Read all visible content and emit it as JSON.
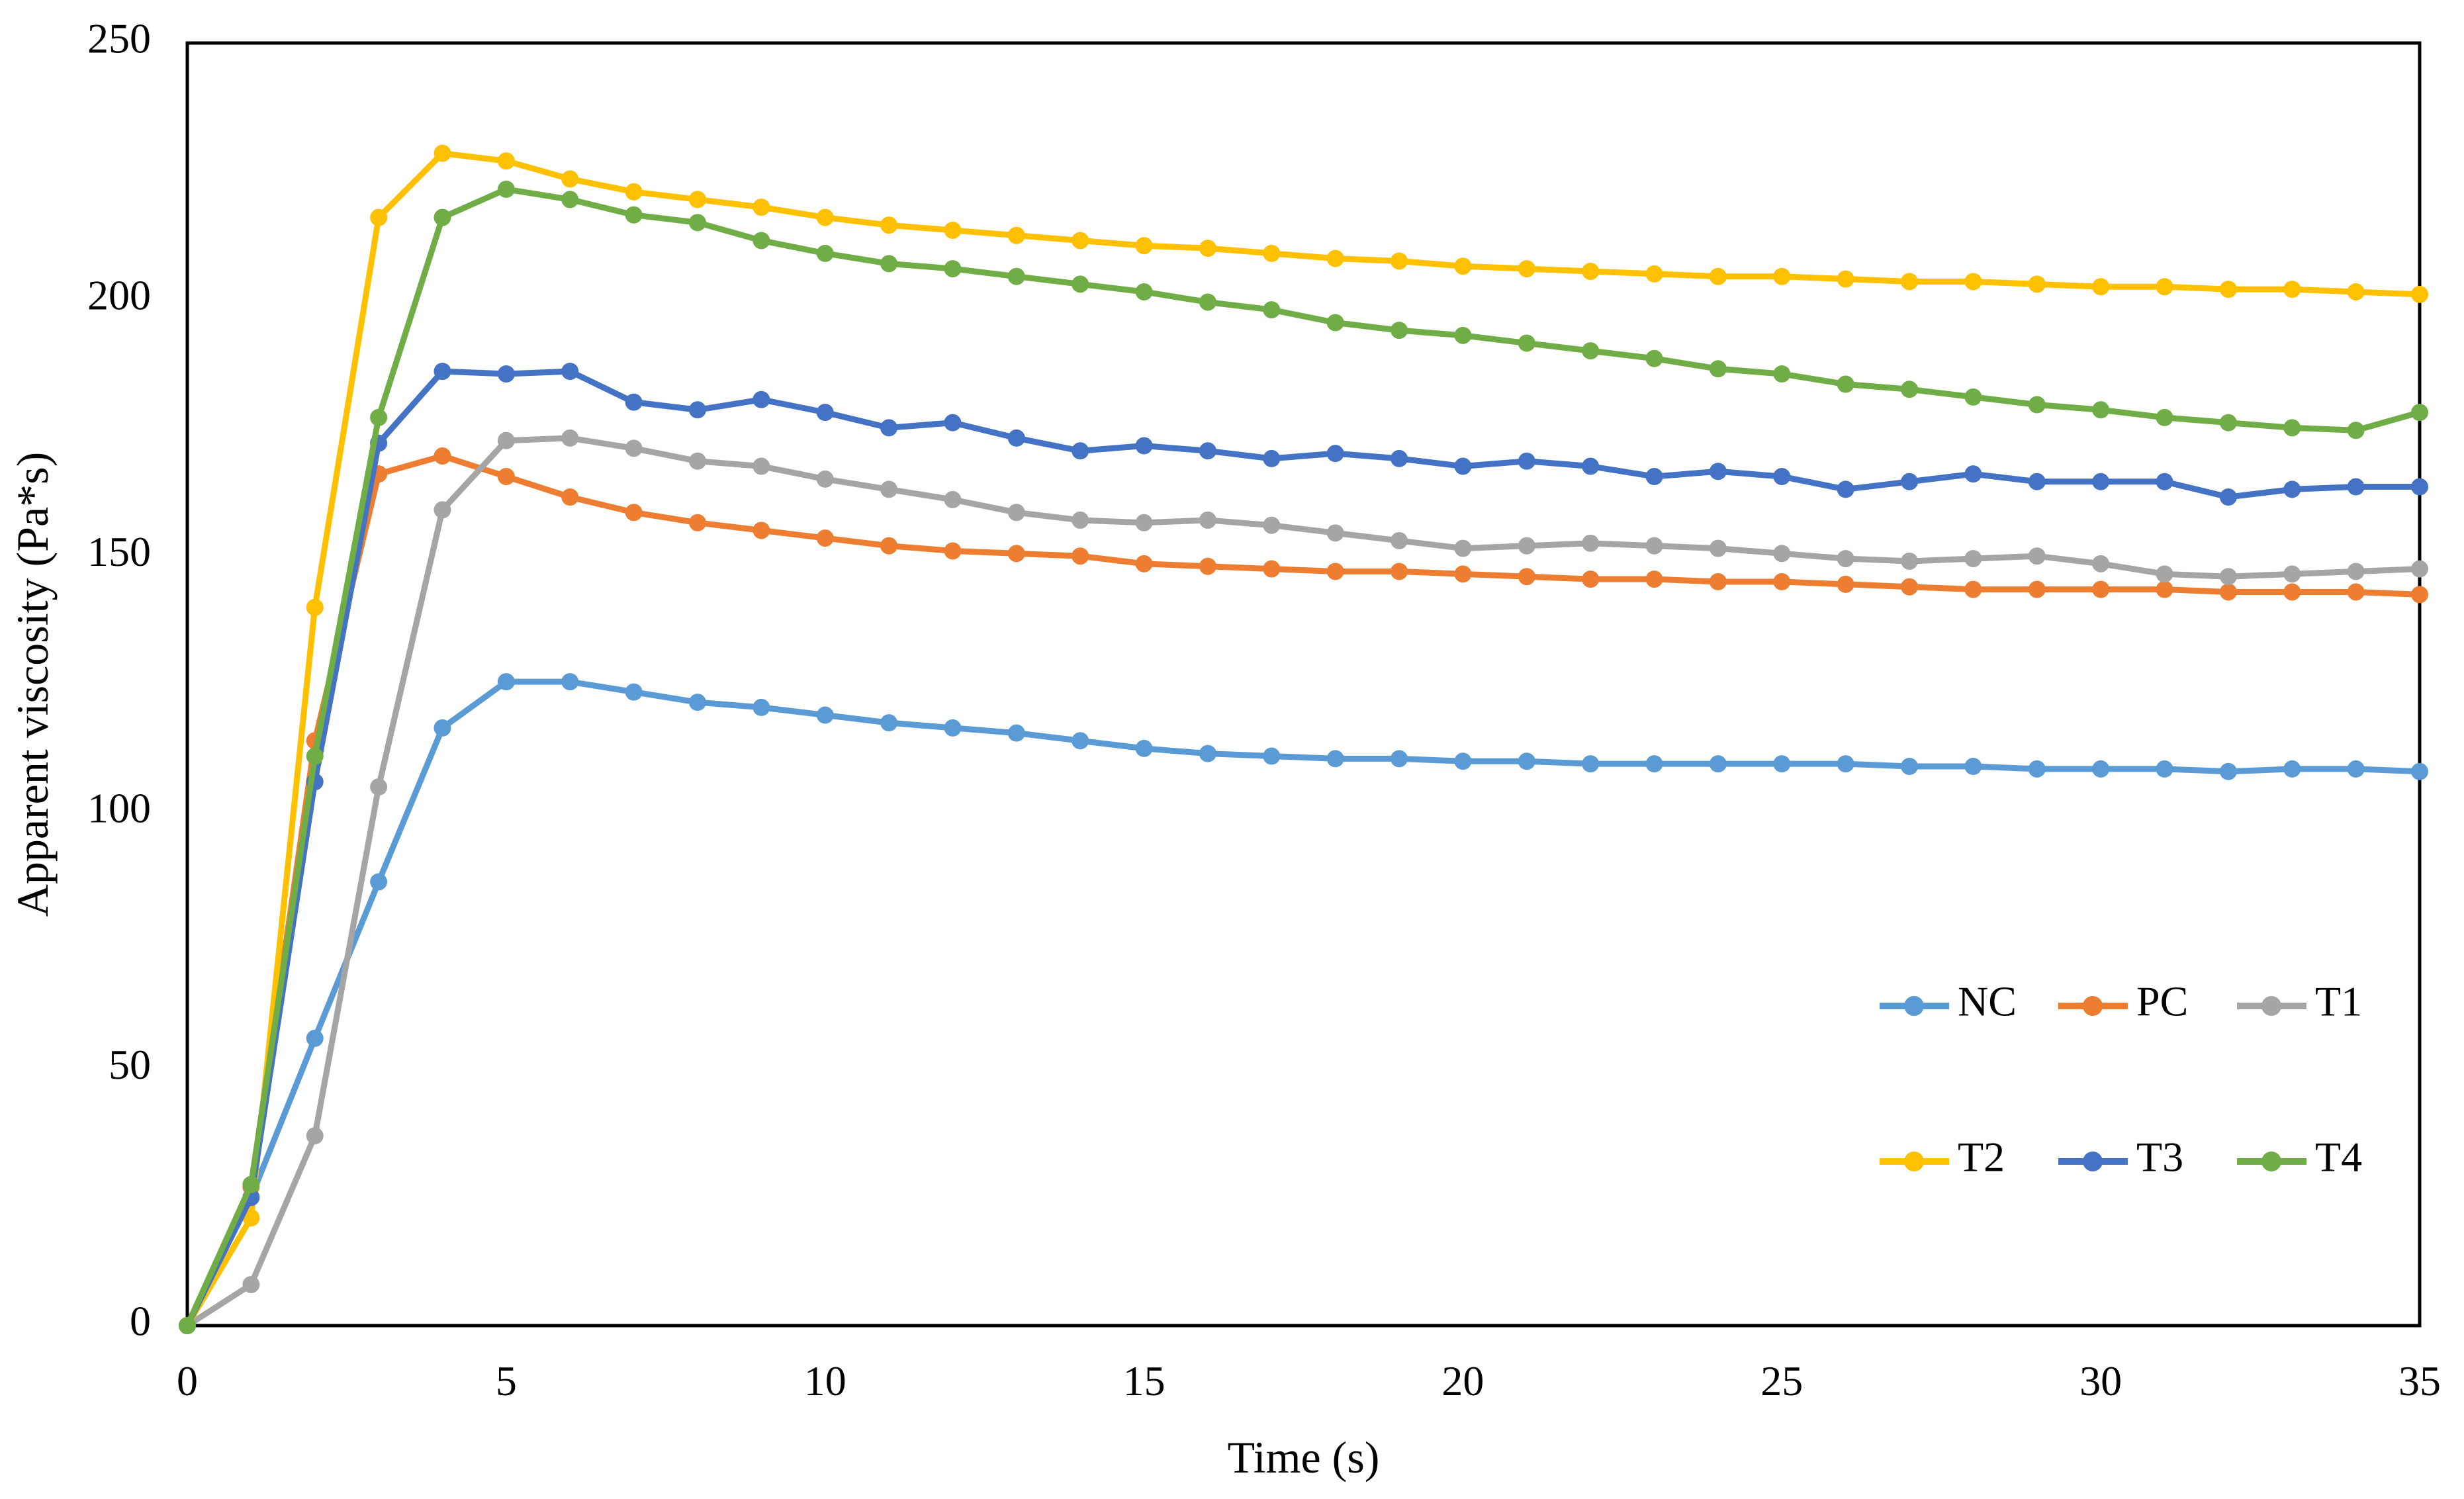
{
  "chart_data": {
    "type": "line",
    "title": "",
    "xlabel": "Time (s)",
    "ylabel": "Apparent viscosity (Pa*s)",
    "xlim": [
      0,
      35
    ],
    "ylim": [
      0,
      250
    ],
    "xticks": [
      0,
      5,
      10,
      15,
      20,
      25,
      30,
      35
    ],
    "yticks": [
      0,
      50,
      100,
      150,
      200,
      250
    ],
    "grid": false,
    "legend_position": "inside-right-middle",
    "legend_rows": [
      [
        "NC",
        "PC",
        "T1"
      ],
      [
        "T2",
        "T3",
        "T4"
      ]
    ],
    "x": [
      0,
      1,
      2,
      3,
      4,
      5,
      6,
      7,
      8,
      9,
      10,
      11,
      12,
      13,
      14,
      15,
      16,
      17,
      18,
      19,
      20,
      21,
      22,
      23,
      24,
      25,
      26,
      27,
      28,
      29,
      30,
      31,
      32,
      33,
      34,
      35
    ],
    "series": [
      {
        "name": "NC",
        "color": "#5B9BD5",
        "values": [
          0,
          25,
          56,
          86.5,
          116.5,
          125.5,
          125.5,
          123.5,
          121.5,
          120.5,
          119,
          117.5,
          116.5,
          115.5,
          114,
          112.5,
          111.5,
          111,
          110.5,
          110.5,
          110,
          110,
          109.5,
          109.5,
          109.5,
          109.5,
          109.5,
          109,
          109,
          108.5,
          108.5,
          108.5,
          108,
          108.5,
          108.5,
          108
        ]
      },
      {
        "name": "PC",
        "color": "#ED7D31",
        "values": [
          0,
          27,
          114,
          166,
          169.5,
          165.5,
          161.5,
          158.5,
          156.5,
          155,
          153.5,
          152,
          151,
          150.5,
          150,
          148.5,
          148,
          147.5,
          147,
          147,
          146.5,
          146,
          145.5,
          145.5,
          145,
          145,
          144.5,
          144,
          143.5,
          143.5,
          143.5,
          143.5,
          143,
          143,
          143,
          142.5
        ]
      },
      {
        "name": "T1",
        "color": "#A5A5A5",
        "values": [
          0,
          8,
          37,
          105,
          159,
          172.5,
          173,
          171,
          168.5,
          167.5,
          165,
          163,
          161,
          158.5,
          157,
          156.5,
          157,
          156,
          154.5,
          153,
          151.5,
          152,
          152.5,
          152,
          151.5,
          150.5,
          149.5,
          149,
          149.5,
          150,
          148.5,
          146.5,
          146,
          146.5,
          147,
          147.5
        ]
      },
      {
        "name": "T2",
        "color": "#FFC000",
        "values": [
          0,
          21,
          140,
          216,
          228.5,
          227,
          223.5,
          221,
          219.5,
          218,
          216,
          214.5,
          213.5,
          212.5,
          211.5,
          210.5,
          210,
          209,
          208,
          207.5,
          206.5,
          206,
          205.5,
          205,
          204.5,
          204.5,
          204,
          203.5,
          203.5,
          203,
          202.5,
          202.5,
          202,
          202,
          201.5,
          201
        ]
      },
      {
        "name": "T3",
        "color": "#4472C4",
        "values": [
          0,
          25,
          106,
          172,
          186,
          185.5,
          186,
          180,
          178.5,
          180.5,
          178,
          175,
          176,
          173,
          170.5,
          171.5,
          170.5,
          169,
          170,
          169,
          167.5,
          168.5,
          167.5,
          165.5,
          166.5,
          165.5,
          163,
          164.5,
          166,
          164.5,
          164.5,
          164.5,
          161.5,
          163,
          163.5,
          163.5
        ]
      },
      {
        "name": "T4",
        "color": "#70AD47",
        "values": [
          0,
          27.5,
          111,
          177,
          216,
          221.5,
          219.5,
          216.5,
          215,
          211.5,
          209,
          207,
          206,
          204.5,
          203,
          201.5,
          199.5,
          198,
          195.5,
          194,
          193,
          191.5,
          190,
          188.5,
          186.5,
          185.5,
          183.5,
          182.5,
          181,
          179.5,
          178.5,
          177,
          176,
          175,
          174.5,
          178
        ]
      }
    ],
    "frame_color": "#000000"
  }
}
